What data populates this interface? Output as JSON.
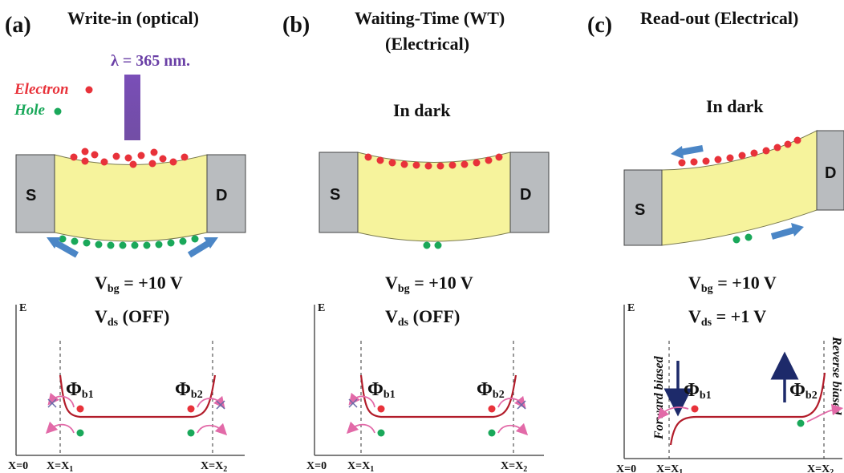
{
  "panels": [
    {
      "letter": "(a)",
      "title_line1": "Write-in (optical)",
      "wavelength": "λ = 365 nm.",
      "legend_electron": "Electron",
      "legend_hole": "Hole",
      "source": "S",
      "drain": "D",
      "vbg_sym": "V",
      "vbg_sub": "bg",
      "vbg_val": " = +10 V",
      "vds_sym": "V",
      "vds_sub": "ds",
      "vds_val": " (OFF)",
      "energy": "E",
      "phi_left_sym": "Φ",
      "phi_left_sub": "b1",
      "phi_right_sym": "Φ",
      "phi_right_sub": "b2",
      "x0": "X=0",
      "x1": "X=X",
      "x1_sub": "1",
      "x2": "X=X",
      "x2_sub": "2"
    },
    {
      "letter": "(b)",
      "title_line1": "Waiting-Time (WT)",
      "title_line2": "(Electrical)",
      "dark": "In dark",
      "source": "S",
      "drain": "D",
      "vbg_sym": "V",
      "vbg_sub": "bg",
      "vbg_val": " = +10 V",
      "vds_sym": "V",
      "vds_sub": "ds",
      "vds_val": " (OFF)",
      "energy": "E",
      "phi_left_sym": "Φ",
      "phi_left_sub": "b1",
      "phi_right_sym": "Φ",
      "phi_right_sub": "b2",
      "x0": "X=0",
      "x1": "X=X",
      "x1_sub": "1",
      "x2": "X=X",
      "x2_sub": "2"
    },
    {
      "letter": "(c)",
      "title_line1": "Read-out (Electrical)",
      "dark": "In dark",
      "source": "S",
      "drain": "D",
      "vbg_sym": "V",
      "vbg_sub": "bg",
      "vbg_val": " = +10 V",
      "vds_sym": "V",
      "vds_sub": "ds",
      "vds_val": " = +1 V",
      "energy": "E",
      "forward": "Forward biased",
      "reverse": "Reverse biased",
      "phi_left_sym": "Φ",
      "phi_left_sub": "b1",
      "phi_right_sym": "Φ",
      "phi_right_sub": "b2",
      "x0": "X=0",
      "x1": "X=X",
      "x1_sub": "1",
      "x2": "X=X",
      "x2_sub": "2"
    }
  ],
  "colors": {
    "electron": "#e8323a",
    "hole": "#1aa85a",
    "channel": "#f6f39c",
    "contact": "#b9bcbf",
    "arrow_blue": "#4b86c6",
    "band": "#b21c2a",
    "curl": "#e26aa8",
    "light": "#6a3fa6",
    "barrier_arrow": "#1d2a6a"
  }
}
